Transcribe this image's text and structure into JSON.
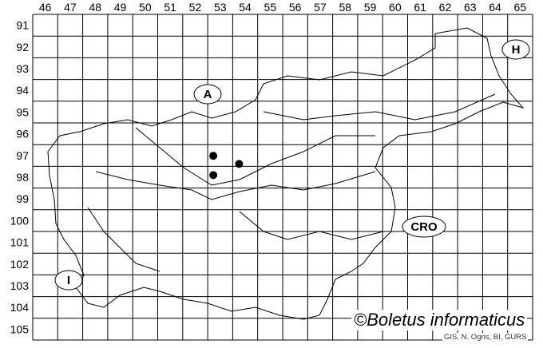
{
  "map": {
    "columns": [
      "46",
      "47",
      "48",
      "49",
      "50",
      "51",
      "52",
      "53",
      "54",
      "55",
      "56",
      "57",
      "58",
      "59",
      "60",
      "61",
      "62",
      "63",
      "64",
      "65"
    ],
    "rows": [
      "91",
      "92",
      "93",
      "94",
      "95",
      "96",
      "97",
      "98",
      "99",
      "100",
      "101",
      "102",
      "103",
      "104",
      "105"
    ],
    "countries": [
      {
        "label": "A"
      },
      {
        "label": "H"
      },
      {
        "label": "CRO"
      },
      {
        "label": "I"
      }
    ],
    "records": [
      {
        "column": 53,
        "row": 97
      },
      {
        "column": 53,
        "row": 98
      },
      {
        "column": 54,
        "row": 98
      }
    ],
    "dot_color": "#000000",
    "credit": "©Boletus informaticus",
    "source": "GIS, N. Ogris, BI, GURS"
  }
}
